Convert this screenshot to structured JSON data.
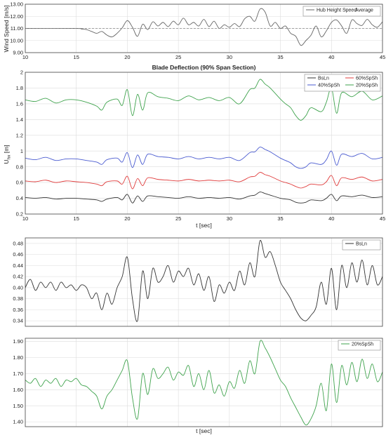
{
  "chart_data": [
    {
      "id": "p1",
      "type": "line",
      "title": "",
      "xlabel": "",
      "ylabel": "Wind Speed [m/s]",
      "xlim": [
        10,
        45
      ],
      "ylim": [
        9.0,
        13.0
      ],
      "xticks": [
        "10",
        "15",
        "20",
        "25",
        "30",
        "35",
        "40",
        "45"
      ],
      "yticks": [
        "9.00",
        "10.00",
        "11.00",
        "12.00",
        "13.00"
      ],
      "grid": true,
      "legend_position": "top-right",
      "series": [
        {
          "name": "Hub Height Speed",
          "color": "#666666",
          "dash": false,
          "x": [
            10,
            15,
            15.5,
            16,
            16.5,
            17,
            17.5,
            18,
            18.5,
            19,
            19.5,
            20,
            20.5,
            21,
            21.5,
            22,
            22.5,
            23,
            23.5,
            24,
            24.5,
            25,
            25.5,
            26,
            26.5,
            27,
            27.5,
            28,
            28.5,
            29,
            29.5,
            30,
            30.5,
            31,
            31.5,
            32,
            32.5,
            33,
            33.5,
            34,
            34.5,
            35,
            35.5,
            36,
            36.5,
            37,
            37.5,
            38,
            38.5,
            39,
            39.5,
            40,
            40.5,
            41,
            41.5,
            42,
            42.5,
            43,
            43.5,
            44,
            44.5,
            45
          ],
          "values": [
            11.0,
            11.0,
            10.95,
            10.9,
            10.75,
            10.6,
            10.75,
            10.45,
            10.3,
            10.6,
            11.05,
            11.65,
            11.1,
            10.35,
            11.35,
            10.9,
            11.55,
            11.2,
            11.5,
            11.15,
            11.6,
            11.3,
            11.85,
            11.3,
            11.5,
            11.2,
            11.75,
            11.15,
            11.6,
            11.0,
            11.3,
            11.1,
            11.4,
            11.15,
            11.8,
            12.0,
            11.6,
            12.6,
            12.35,
            11.2,
            11.5,
            11.0,
            11.2,
            10.6,
            10.35,
            9.6,
            10.0,
            10.45,
            11.2,
            10.3,
            10.8,
            11.5,
            11.7,
            11.2,
            10.6,
            11.7,
            11.4,
            11.25,
            11.75,
            11.3,
            11.1,
            11.55
          ]
        },
        {
          "name": "Average",
          "color": "#888888",
          "dash": true,
          "x": [
            10,
            45
          ],
          "values": [
            11.0,
            11.0
          ]
        }
      ]
    },
    {
      "id": "p2",
      "type": "line",
      "title": "Blade Deflection (90% Span Section)",
      "xlabel": "t [sec]",
      "ylabel": "U",
      "ylabel_sub": "hx",
      "ylabel_unit": " [m]",
      "xlim": [
        10,
        45
      ],
      "ylim": [
        0.2,
        2.0
      ],
      "xticks": [
        "10",
        "15",
        "20",
        "25",
        "30",
        "35",
        "40",
        "45"
      ],
      "yticks": [
        "0.2",
        "0.4",
        "0.6",
        "0.8",
        "1",
        "1.2",
        "1.4",
        "1.6",
        "1.8",
        "2"
      ],
      "grid": true,
      "legend_position": "top-right",
      "series": [
        {
          "name": "BsLn",
          "color": "#333333",
          "x": [
            10,
            11,
            12,
            13,
            14,
            15,
            16,
            17,
            17.5,
            18,
            19,
            19.5,
            20,
            20.5,
            21,
            21.5,
            22,
            23,
            24,
            25,
            26,
            27,
            28,
            29,
            30,
            31,
            32,
            32.5,
            33,
            33.5,
            34,
            35,
            35.5,
            36,
            36.5,
            37,
            37.5,
            38,
            39,
            39.5,
            40,
            40.5,
            41,
            42,
            43,
            44,
            45
          ],
          "values": [
            0.41,
            0.4,
            0.41,
            0.39,
            0.4,
            0.4,
            0.39,
            0.38,
            0.36,
            0.39,
            0.41,
            0.38,
            0.45,
            0.34,
            0.43,
            0.36,
            0.43,
            0.42,
            0.41,
            0.4,
            0.42,
            0.4,
            0.41,
            0.4,
            0.41,
            0.39,
            0.43,
            0.44,
            0.48,
            0.46,
            0.44,
            0.4,
            0.39,
            0.38,
            0.35,
            0.34,
            0.35,
            0.38,
            0.37,
            0.4,
            0.45,
            0.37,
            0.43,
            0.42,
            0.44,
            0.41,
            0.42
          ]
        },
        {
          "name": "60%SpSh",
          "color": "#e03c3c",
          "x": [
            10,
            11,
            12,
            13,
            14,
            15,
            16,
            17,
            17.5,
            18,
            19,
            19.5,
            20,
            20.5,
            21,
            21.5,
            22,
            23,
            24,
            25,
            26,
            27,
            28,
            29,
            30,
            31,
            32,
            32.5,
            33,
            33.5,
            34,
            35,
            35.5,
            36,
            36.5,
            37,
            37.5,
            38,
            39,
            39.5,
            40,
            40.5,
            41,
            42,
            43,
            44,
            45
          ],
          "values": [
            0.62,
            0.61,
            0.63,
            0.6,
            0.62,
            0.61,
            0.6,
            0.58,
            0.56,
            0.61,
            0.62,
            0.58,
            0.68,
            0.52,
            0.65,
            0.56,
            0.66,
            0.64,
            0.63,
            0.62,
            0.64,
            0.62,
            0.63,
            0.62,
            0.63,
            0.61,
            0.67,
            0.68,
            0.73,
            0.7,
            0.68,
            0.62,
            0.6,
            0.58,
            0.55,
            0.53,
            0.55,
            0.58,
            0.57,
            0.61,
            0.69,
            0.56,
            0.66,
            0.64,
            0.67,
            0.62,
            0.64
          ]
        },
        {
          "name": "40%SpSh",
          "color": "#4a5bd0",
          "x": [
            10,
            11,
            12,
            13,
            14,
            15,
            16,
            17,
            17.5,
            18,
            19,
            19.5,
            20,
            20.5,
            21,
            21.5,
            22,
            23,
            24,
            25,
            26,
            27,
            28,
            29,
            30,
            31,
            32,
            32.5,
            33,
            33.5,
            34,
            35,
            35.5,
            36,
            36.5,
            37,
            37.5,
            38,
            39,
            39.5,
            40,
            40.5,
            41,
            42,
            43,
            44,
            45
          ],
          "values": [
            0.91,
            0.89,
            0.92,
            0.88,
            0.9,
            0.9,
            0.88,
            0.86,
            0.83,
            0.89,
            0.91,
            0.86,
            0.98,
            0.79,
            0.95,
            0.83,
            0.96,
            0.93,
            0.92,
            0.9,
            0.93,
            0.9,
            0.92,
            0.9,
            0.92,
            0.88,
            0.98,
            0.99,
            1.05,
            1.02,
            0.99,
            0.91,
            0.88,
            0.85,
            0.8,
            0.78,
            0.8,
            0.85,
            0.83,
            0.89,
            1.0,
            0.82,
            0.96,
            0.93,
            0.97,
            0.9,
            0.92
          ]
        },
        {
          "name": "20%SpSh",
          "color": "#3fa34d",
          "x": [
            10,
            11,
            12,
            13,
            14,
            15,
            16,
            17,
            17.5,
            18,
            19,
            19.5,
            20,
            20.5,
            21,
            21.5,
            22,
            23,
            24,
            25,
            26,
            27,
            28,
            29,
            30,
            31,
            32,
            32.5,
            33,
            33.5,
            34,
            35,
            35.5,
            36,
            36.5,
            37,
            37.5,
            38,
            39,
            39.5,
            40,
            40.5,
            41,
            42,
            43,
            44,
            45
          ],
          "values": [
            1.65,
            1.63,
            1.67,
            1.61,
            1.65,
            1.65,
            1.62,
            1.57,
            1.52,
            1.62,
            1.66,
            1.58,
            1.78,
            1.45,
            1.72,
            1.52,
            1.74,
            1.69,
            1.67,
            1.64,
            1.7,
            1.65,
            1.68,
            1.64,
            1.68,
            1.6,
            1.78,
            1.8,
            1.91,
            1.85,
            1.8,
            1.66,
            1.6,
            1.55,
            1.45,
            1.39,
            1.45,
            1.55,
            1.5,
            1.62,
            1.8,
            1.48,
            1.74,
            1.69,
            1.76,
            1.65,
            1.7
          ]
        }
      ]
    },
    {
      "id": "p3",
      "type": "line",
      "title": "",
      "xlabel": "",
      "ylabel": "",
      "xlim": [
        10,
        45
      ],
      "ylim": [
        0.33,
        0.49
      ],
      "xticks": [],
      "yticks": [
        "0.34",
        "0.36",
        "0.38",
        "0.40",
        "0.42",
        "0.44",
        "0.46",
        "0.48"
      ],
      "grid": true,
      "legend_position": "top-right",
      "series": [
        {
          "name": "BsLn",
          "color": "#333333",
          "x": [
            10,
            10.5,
            11,
            11.5,
            12,
            12.5,
            13,
            13.5,
            14,
            14.5,
            15,
            15.5,
            16,
            16.5,
            17,
            17.5,
            18,
            18.5,
            19,
            19.5,
            20,
            20.5,
            21,
            21.5,
            22,
            22.5,
            23,
            23.5,
            24,
            24.5,
            25,
            25.5,
            26,
            26.5,
            27,
            27.5,
            28,
            28.5,
            29,
            29.5,
            30,
            30.5,
            31,
            31.5,
            32,
            32.5,
            33,
            33.5,
            34,
            34.5,
            35,
            35.5,
            36,
            36.5,
            37,
            37.5,
            38,
            38.5,
            39,
            39.5,
            40,
            40.5,
            41,
            41.5,
            42,
            42.5,
            43,
            43.5,
            44,
            44.5,
            45
          ],
          "values": [
            0.4,
            0.415,
            0.395,
            0.41,
            0.4,
            0.41,
            0.395,
            0.41,
            0.4,
            0.405,
            0.395,
            0.405,
            0.4,
            0.38,
            0.39,
            0.36,
            0.39,
            0.37,
            0.4,
            0.42,
            0.455,
            0.38,
            0.34,
            0.43,
            0.38,
            0.435,
            0.41,
            0.42,
            0.44,
            0.41,
            0.43,
            0.42,
            0.435,
            0.405,
            0.425,
            0.395,
            0.42,
            0.375,
            0.405,
            0.39,
            0.41,
            0.395,
            0.43,
            0.405,
            0.445,
            0.42,
            0.485,
            0.455,
            0.465,
            0.44,
            0.41,
            0.395,
            0.38,
            0.36,
            0.345,
            0.34,
            0.35,
            0.365,
            0.41,
            0.37,
            0.435,
            0.36,
            0.44,
            0.4,
            0.445,
            0.41,
            0.45,
            0.405,
            0.44,
            0.405,
            0.42
          ]
        }
      ]
    },
    {
      "id": "p4",
      "type": "line",
      "title": "",
      "xlabel": "t [sec]",
      "ylabel": "",
      "xlim": [
        10,
        45
      ],
      "ylim": [
        1.37,
        1.92
      ],
      "xticks": [],
      "yticks": [
        "1.40",
        "1.50",
        "1.60",
        "1.70",
        "1.80",
        "1.90"
      ],
      "grid": true,
      "legend_position": "top-right",
      "series": [
        {
          "name": "20%SpSh",
          "color": "#3fa34d",
          "x": [
            10,
            10.5,
            11,
            11.5,
            12,
            12.5,
            13,
            13.5,
            14,
            14.5,
            15,
            15.5,
            16,
            16.5,
            17,
            17.5,
            18,
            18.5,
            19,
            19.5,
            20,
            20.5,
            21,
            21.5,
            22,
            22.5,
            23,
            23.5,
            24,
            24.5,
            25,
            25.5,
            26,
            26.5,
            27,
            27.5,
            28,
            28.5,
            29,
            29.5,
            30,
            30.5,
            31,
            31.5,
            32,
            32.5,
            33,
            33.5,
            34,
            34.5,
            35,
            35.5,
            36,
            36.5,
            37,
            37.5,
            38,
            38.5,
            39,
            39.5,
            40,
            40.5,
            41,
            41.5,
            42,
            42.5,
            43,
            43.5,
            44,
            44.5,
            45
          ],
          "values": [
            1.66,
            1.64,
            1.67,
            1.62,
            1.66,
            1.64,
            1.67,
            1.62,
            1.66,
            1.65,
            1.67,
            1.63,
            1.62,
            1.59,
            1.56,
            1.48,
            1.56,
            1.6,
            1.66,
            1.72,
            1.78,
            1.55,
            1.42,
            1.7,
            1.57,
            1.73,
            1.67,
            1.7,
            1.74,
            1.66,
            1.71,
            1.69,
            1.75,
            1.62,
            1.7,
            1.6,
            1.72,
            1.58,
            1.63,
            1.56,
            1.65,
            1.61,
            1.72,
            1.64,
            1.78,
            1.7,
            1.9,
            1.86,
            1.8,
            1.73,
            1.66,
            1.62,
            1.55,
            1.49,
            1.43,
            1.38,
            1.42,
            1.5,
            1.64,
            1.47,
            1.76,
            1.52,
            1.75,
            1.63,
            1.77,
            1.65,
            1.79,
            1.67,
            1.76,
            1.65,
            1.71
          ]
        }
      ]
    }
  ]
}
